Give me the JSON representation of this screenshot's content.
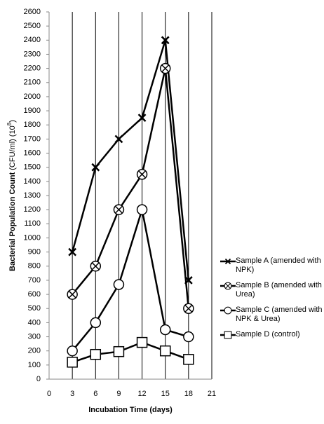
{
  "chart_data": {
    "type": "line",
    "ylabel": [
      "Bacterial Population Count",
      "(CFU/ml) (10",
      "8",
      ")"
    ],
    "xlabel": "Incubation Time (days)",
    "x": [
      3,
      6,
      9,
      12,
      15,
      18
    ],
    "series": [
      {
        "name": "Sample A (amended with NPK)",
        "color": "#000000",
        "marker": "x",
        "values": [
          900,
          1500,
          1700,
          1850,
          2400,
          700
        ]
      },
      {
        "name": "Sample B (amended with Urea)",
        "color": "#000000",
        "marker": "circle-x",
        "values": [
          600,
          800,
          1200,
          1450,
          2200,
          500
        ]
      },
      {
        "name": "Sample C (amended with NPK & Urea)",
        "color": "#000000",
        "marker": "circle",
        "values": [
          200,
          400,
          670,
          1200,
          350,
          300
        ]
      },
      {
        "name": "Sample D (control)",
        "color": "#000000",
        "marker": "square",
        "values": [
          120,
          175,
          195,
          260,
          200,
          140
        ]
      }
    ],
    "xlim": [
      0,
      21
    ],
    "xticks": [
      0,
      3,
      6,
      9,
      12,
      15,
      18,
      21
    ],
    "ylim": [
      0,
      2600
    ],
    "yticks": [
      0,
      100,
      200,
      300,
      400,
      500,
      600,
      700,
      800,
      900,
      1000,
      1100,
      1200,
      1300,
      1400,
      1500,
      1600,
      1700,
      1800,
      1900,
      2000,
      2100,
      2200,
      2300,
      2400,
      2500,
      2600
    ],
    "grid": "x",
    "legend": "right"
  }
}
